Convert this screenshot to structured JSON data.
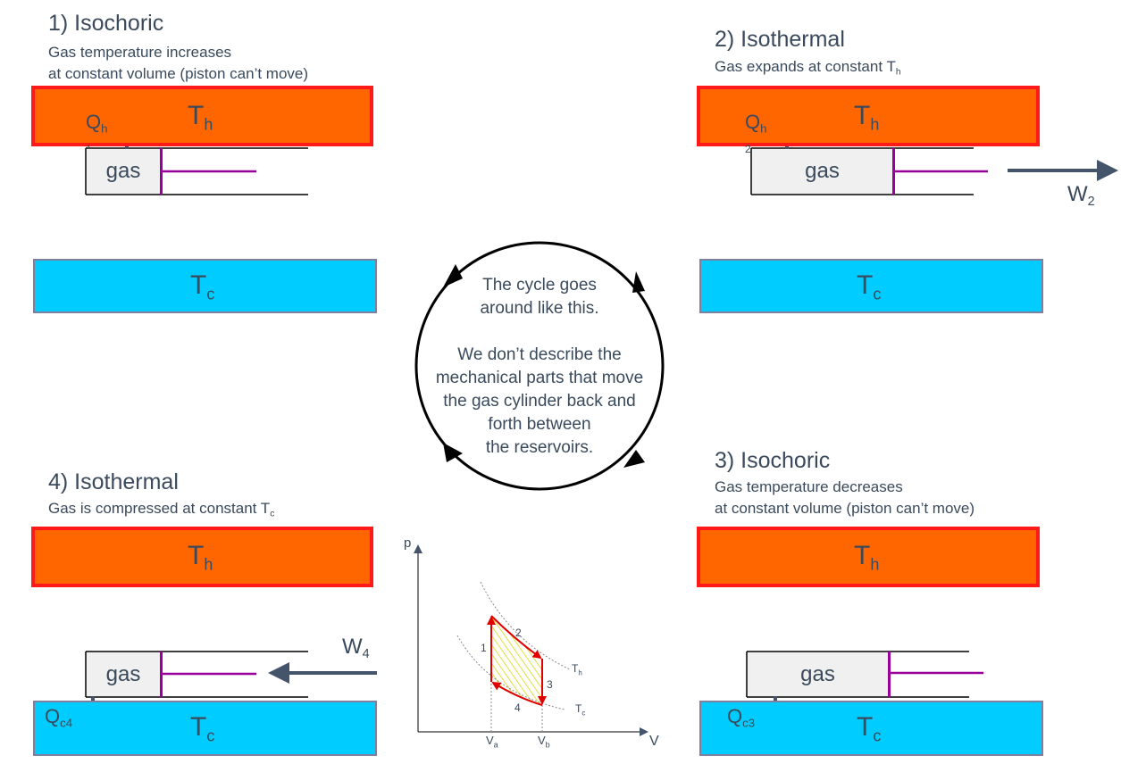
{
  "panel1": {
    "title": "1) Isochoric",
    "desc_line1": "Gas temperature increases",
    "desc_line2": "at constant volume (piston can’t move)",
    "hot_T": "T",
    "hot_sub": "h",
    "Q": "Q",
    "Q_sub": "h",
    "gas": "gas",
    "state_num": "1",
    "cold_T": "T",
    "cold_sub": "c"
  },
  "panel2": {
    "title": "2) Isothermal",
    "desc": "Gas expands at constant T",
    "desc_sub": "h",
    "hot_T": "T",
    "hot_sub": "h",
    "Q": "Q",
    "Q_sub": "h",
    "state_num": "2",
    "gas": "gas",
    "W": "W",
    "W_sub": "2",
    "cold_T": "T",
    "cold_sub": "c"
  },
  "center": {
    "line1": "The cycle goes",
    "line2": "around like this.",
    "line3": "We don’t describe the",
    "line4": "mechanical parts that move",
    "line5": "the gas cylinder back and",
    "line6": "forth between",
    "line7": "the reservoirs."
  },
  "panel3": {
    "title": "3) Isochoric",
    "desc_line1": "Gas temperature decreases",
    "desc_line2": "at constant volume (piston can’t move)",
    "hot_T": "T",
    "hot_sub": "h",
    "gas": "gas",
    "Q": "Q",
    "Q_sub": "c3",
    "cold_T": "T",
    "cold_sub": "c"
  },
  "panel4": {
    "title": "4) Isothermal",
    "desc": "Gas is compressed at constant T",
    "desc_sub": "c",
    "hot_T": "T",
    "hot_sub": "h",
    "W": "W",
    "W_sub": "4",
    "gas": "gas",
    "Q": "Q",
    "Q_sub": "c4",
    "cold_T": "T",
    "cold_sub": "c"
  },
  "pv": {
    "p_axis": "p",
    "v_axis": "V",
    "Va": "V",
    "Va_sub": "a",
    "Vb": "V",
    "Vb_sub": "b",
    "Th": "T",
    "Th_sub": "h",
    "Tc": "T",
    "Tc_sub": "c",
    "step1": "1",
    "step2": "2",
    "step3": "3",
    "step4": "4"
  },
  "colors": {
    "hot_fill": "#ff6600",
    "hot_border": "#ff1a1a",
    "cold_fill": "#00ccff",
    "piston": "#990099",
    "arrow": "#44546a",
    "cycle_red": "#e00000",
    "hatch": "#e8e840"
  }
}
